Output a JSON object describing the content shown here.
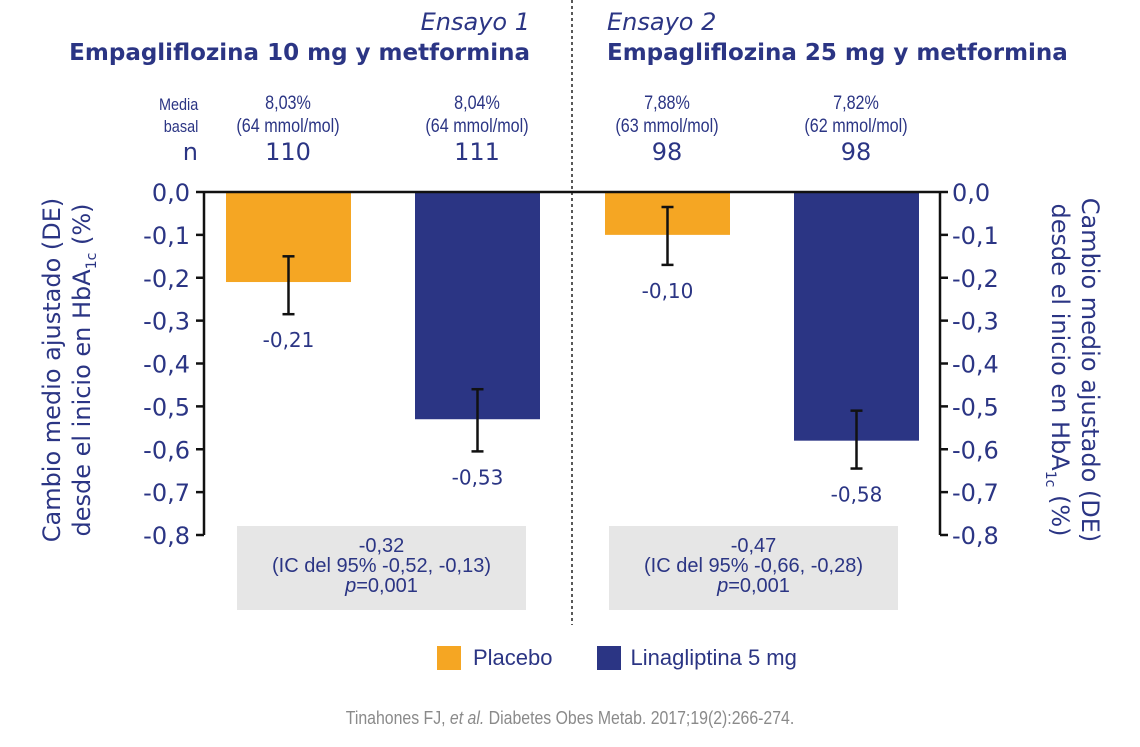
{
  "chart_data": {
    "type": "bar",
    "title": "",
    "ylabel": "Cambio medio ajustado (DE) desde el inicio en HbA1c (%)",
    "ylabel_lines": [
      "Cambio medio ajustado (DE)",
      "desde el inicio en HbA",
      "1c",
      "(%)"
    ],
    "ylim": [
      -0.8,
      0.0
    ],
    "yticks": [
      "0,0",
      "-0,1",
      "-0,2",
      "-0,3",
      "-0,4",
      "-0,5",
      "-0,6",
      "-0,7",
      "-0,8"
    ],
    "ytick_values": [
      0.0,
      -0.1,
      -0.2,
      -0.3,
      -0.4,
      -0.5,
      -0.6,
      -0.7,
      -0.8
    ],
    "legend": {
      "position": "bottom-center",
      "entries": [
        {
          "name": "Placebo",
          "color": "#f5a623"
        },
        {
          "name": "Linagliptina 5 mg",
          "color": "#2b3584"
        }
      ]
    },
    "row_labels": {
      "baseline": [
        "Media",
        "basal"
      ],
      "n": "n"
    },
    "trials": [
      {
        "label": "Ensayo 1",
        "title": "Empagliflozina 10 mg y metformina",
        "bars": [
          {
            "series": "Placebo",
            "value": -0.21,
            "value_label": "-0,21",
            "err_low": -0.285,
            "err_high": -0.15,
            "baseline_pct": "8,03%",
            "baseline_mmol": "(64 mmol/mol)",
            "n": "110",
            "color": "#f5a623"
          },
          {
            "series": "Linagliptina 5 mg",
            "value": -0.53,
            "value_label": "-0,53",
            "err_low": -0.605,
            "err_high": -0.46,
            "baseline_pct": "8,04%",
            "baseline_mmol": "(64 mmol/mol)",
            "n": "111",
            "color": "#2b3584"
          }
        ],
        "stats": {
          "difference": "-0,32",
          "ci": "(IC del 95% -0,52, -0,13)",
          "p_prefix": "p",
          "p_value": "=0,001"
        }
      },
      {
        "label": "Ensayo 2",
        "title": "Empagliflozina 25 mg y metformina",
        "bars": [
          {
            "series": "Placebo",
            "value": -0.1,
            "value_label": "-0,10",
            "err_low": -0.17,
            "err_high": -0.035,
            "baseline_pct": "7,88%",
            "baseline_mmol": "(63 mmol/mol)",
            "n": "98",
            "color": "#f5a623"
          },
          {
            "series": "Linagliptina 5 mg",
            "value": -0.58,
            "value_label": "-0,58",
            "err_low": -0.645,
            "err_high": -0.51,
            "baseline_pct": "7,82%",
            "baseline_mmol": "(62 mmol/mol)",
            "n": "98",
            "color": "#2b3584"
          }
        ],
        "stats": {
          "difference": "-0,47",
          "ci": "(IC del 95% -0,66, -0,28)",
          "p_prefix": "p",
          "p_value": "=0,001"
        }
      }
    ]
  },
  "citation": {
    "authors": "Tinahones FJ, ",
    "etal": "et al.",
    "rest": " Diabetes Obes Metab. 2017;19(2):266-274."
  }
}
